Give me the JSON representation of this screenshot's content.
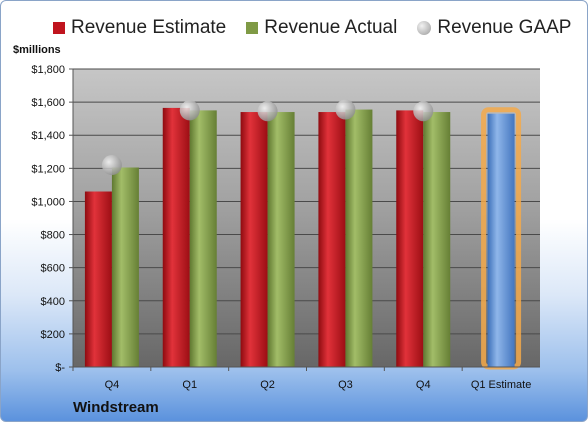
{
  "chart_data": {
    "type": "bar",
    "categories": [
      "Q4",
      "Q1",
      "Q2",
      "Q3",
      "Q4",
      "Q1 Estimate"
    ],
    "series": [
      {
        "name": "Revenue Estimate",
        "values": [
          1060,
          1565,
          1540,
          1540,
          1550,
          null
        ],
        "color": "#c0141e"
      },
      {
        "name": "Revenue Actual",
        "values": [
          1205,
          1550,
          1540,
          1555,
          1540,
          null
        ],
        "color": "#7f9a45"
      },
      {
        "name": "Revenue GAAP",
        "values": [
          1220,
          1550,
          1545,
          1555,
          1545,
          null
        ],
        "color": "#a8a8a8"
      },
      {
        "name": "",
        "values": [
          null,
          null,
          null,
          null,
          null,
          1530
        ],
        "color": "#5b8ed0"
      }
    ],
    "ylabel": "$millions",
    "ylim": [
      0,
      1800
    ],
    "yticks": [
      0,
      200,
      400,
      600,
      800,
      1000,
      1200,
      1400,
      1600,
      1800
    ],
    "ytick_labels": [
      "$-",
      "$200",
      "$400",
      "$600",
      "$800",
      "$1,000",
      "$1,200",
      "$1,400",
      "$1,600",
      "$1,800"
    ],
    "grid": true,
    "legend_position": "top",
    "company": "Windstream"
  }
}
